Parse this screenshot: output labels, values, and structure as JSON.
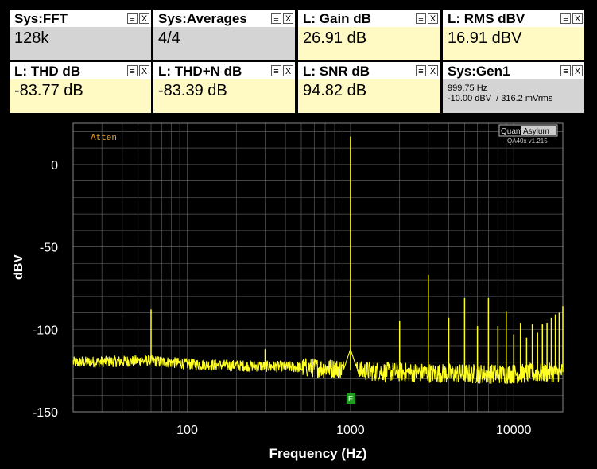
{
  "tiles": [
    {
      "title": "Sys:FFT",
      "value": "128k",
      "kind": "sys"
    },
    {
      "title": "Sys:Averages",
      "value": "4/4",
      "kind": "sys"
    },
    {
      "title": "L: Gain dB",
      "value": "26.91 dB",
      "kind": "val"
    },
    {
      "title": "L: RMS dBV",
      "value": "16.91 dBV",
      "kind": "val"
    },
    {
      "title": "L: THD dB",
      "value": "-83.77 dB",
      "kind": "val"
    },
    {
      "title": "L: THD+N dB",
      "value": "-83.39 dB",
      "kind": "val"
    },
    {
      "title": "L: SNR dB",
      "value": "94.82 dB",
      "kind": "val"
    },
    {
      "title": "Sys:Gen1",
      "line1": "999.75 Hz",
      "line2": "-10.00 dBV  / 316.2 mVrms",
      "kind": "sys"
    }
  ],
  "tile_controls": {
    "menu": "≡",
    "close": "X"
  },
  "plot": {
    "atten_label": "Atten",
    "brand_left": "Quant",
    "brand_right": "Asylum",
    "version": "QA40x v1.215",
    "marker_label": "F",
    "colors": {
      "trace": "#ffff22",
      "grid": "#5a5a5a",
      "atten": "#e8a030",
      "marker": "#1e9e1e"
    }
  },
  "chart_data": {
    "type": "line",
    "xlabel": "Frequency (Hz)",
    "ylabel": "dBV",
    "xscale": "log",
    "xlim": [
      20,
      20000
    ],
    "ylim": [
      -150,
      25
    ],
    "xticks": [
      100,
      1000,
      10000
    ],
    "xtick_labels": [
      "100",
      "1000",
      "10000"
    ],
    "yticks": [
      0,
      -50,
      -100,
      -150
    ],
    "ytick_labels": [
      "0",
      "-50",
      "-100",
      "-150"
    ],
    "grid": true,
    "noise_floor": [
      [
        20,
        -120
      ],
      [
        60,
        -119
      ],
      [
        100,
        -121
      ],
      [
        200,
        -122
      ],
      [
        500,
        -123
      ],
      [
        900,
        -124
      ],
      [
        1000,
        -125
      ],
      [
        2000,
        -126
      ],
      [
        5000,
        -127
      ],
      [
        10000,
        -127
      ],
      [
        20000,
        -126
      ]
    ],
    "peaks": [
      {
        "x": 60,
        "y": -88
      },
      {
        "x": 300,
        "y": -112
      },
      {
        "x": 1000,
        "y": 17
      },
      {
        "x": 2000,
        "y": -95
      },
      {
        "x": 3000,
        "y": -67
      },
      {
        "x": 4000,
        "y": -93
      },
      {
        "x": 5000,
        "y": -81
      },
      {
        "x": 6000,
        "y": -98
      },
      {
        "x": 7000,
        "y": -81
      },
      {
        "x": 8000,
        "y": -98
      },
      {
        "x": 9000,
        "y": -89
      },
      {
        "x": 10000,
        "y": -103
      },
      {
        "x": 11000,
        "y": -96
      },
      {
        "x": 12000,
        "y": -105
      },
      {
        "x": 13000,
        "y": -97
      },
      {
        "x": 14000,
        "y": -102
      },
      {
        "x": 15000,
        "y": -97
      },
      {
        "x": 16000,
        "y": -96
      },
      {
        "x": 17000,
        "y": -93
      },
      {
        "x": 18000,
        "y": -91
      },
      {
        "x": 19000,
        "y": -90
      },
      {
        "x": 20000,
        "y": -86
      }
    ]
  }
}
